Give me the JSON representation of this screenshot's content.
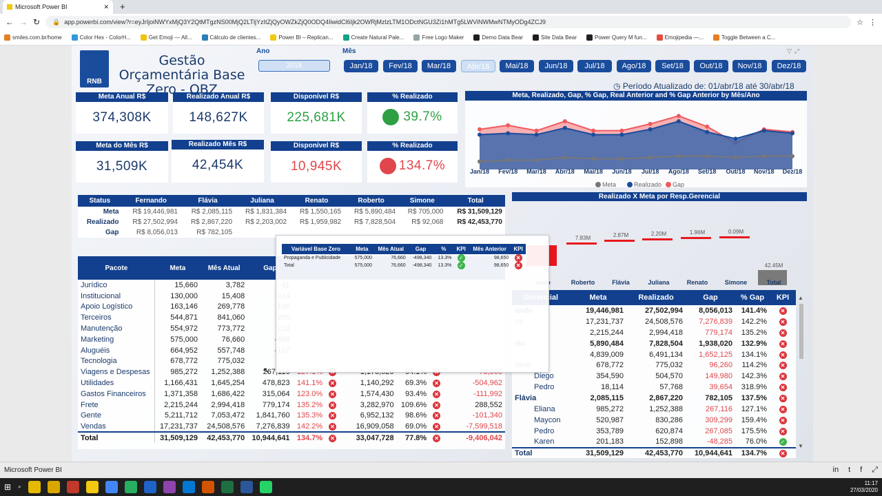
{
  "browser": {
    "tab_title": "Microsoft Power BI",
    "url": "app.powerbi.com/view?r=eyJrIjoiNWYxMjQ3Y2QtMTgzNS00MjQ2LTljYzItZjQyOWZkZjQ0ODQ4IiwidCl6Ijk2OWRjMzlzLTM1ODctNGU3Zi1hMTg5LWViNWMwNTMyODg4ZCJ9",
    "bookmarks": [
      "smiles.com.br/home",
      "Color Hex - ColorH...",
      "Get Emoji — All...",
      "Cálculo de clientes...",
      "Power BI – Replican...",
      "Create Natural Pale...",
      "Free Logo Maker",
      "Demo Data Bear",
      "Site Data Bear",
      "Power Query M fun...",
      "Emojipedia —...",
      "Toggle Between a C..."
    ]
  },
  "report": {
    "logo_text": "RNB",
    "title": "Gestão Orçamentária Base Zero - OBZ",
    "ano_label": "Ano",
    "mes_label": "Mês",
    "ano_value": "2018",
    "months": [
      "Jan/18",
      "Fev/18",
      "Mar/18",
      "Abr/18",
      "Mai/18",
      "Jun/18",
      "Jul/18",
      "Ago/18",
      "Set/18",
      "Out/18",
      "Nov/18",
      "Dez/18"
    ],
    "selected_month": "Abr/18",
    "periodo": "Período Atualizado de: 01/abr/18 até 30/abr/18"
  },
  "cards": {
    "meta_anual": {
      "label": "Meta Anual R$",
      "value": "374,308K"
    },
    "realizado_anual": {
      "label": "Realizado Anual R$",
      "value": "148,627K"
    },
    "disponivel_anual": {
      "label": "Disponível R$",
      "value": "225,681K",
      "color": "#2ea043"
    },
    "pct_anual": {
      "label": "% Realizado",
      "value": "39.7%",
      "color": "#2ea043"
    },
    "meta_mes": {
      "label": "Meta do Mês R$",
      "value": "31,509K"
    },
    "realizado_mes": {
      "label": "Realizado Mês R$",
      "value": "42,454K"
    },
    "disponivel_mes": {
      "label": "Disponível R$",
      "value": "10,945K",
      "color": "#e0464b"
    },
    "pct_mes": {
      "label": "% Realizado",
      "value": "134.7%",
      "color": "#e0464b"
    }
  },
  "chart_data": {
    "type": "area",
    "title": "Meta, Realizado, Gap, % Gap, Real Anterior and % Gap Anterior by Mês/Ano",
    "categories": [
      "Jan/18",
      "Fev/18",
      "Mar/18",
      "Abr/18",
      "Mai/18",
      "Jun/18",
      "Jul/18",
      "Ago/18",
      "Set/18",
      "Out/18",
      "Nov/18",
      "Dez/18"
    ],
    "series": [
      {
        "name": "Meta",
        "color": "#777777",
        "values": [
          30.0,
          30.5,
          30.5,
          31.5,
          31.0,
          31.0,
          31.5,
          32.0,
          32.0,
          31.5,
          32.0,
          32.0
        ]
      },
      {
        "name": "Realizado",
        "color": "#1a4c9c",
        "values": [
          40.0,
          40.5,
          40.0,
          42.5,
          40.0,
          40.0,
          42.0,
          45.0,
          41.0,
          38.5,
          41.5,
          40.5
        ]
      },
      {
        "name": "Gap",
        "color": "#f05a5f",
        "values": [
          42.0,
          43.5,
          41.5,
          45.0,
          41.5,
          41.5,
          44.0,
          47.0,
          43.0,
          37.0,
          42.0,
          41.0
        ]
      }
    ],
    "legend": [
      "Meta",
      "Realizado",
      "Gap"
    ]
  },
  "status_table": {
    "headers": [
      "Status",
      "Fernando",
      "Flávia",
      "Juliana",
      "Renato",
      "Roberto",
      "Simone",
      "Total"
    ],
    "rows": [
      [
        "Meta",
        "R$ 19,446,981",
        "R$ 2,085,115",
        "R$ 1,831,384",
        "R$ 1,550,165",
        "R$ 5,890,484",
        "R$ 705,000",
        "R$ 31,509,129"
      ],
      [
        "Realizado",
        "R$ 27,502,994",
        "R$ 2,867,220",
        "R$ 2,203,002",
        "R$ 1,959,982",
        "R$ 7,828,504",
        "R$ 92,068",
        "R$ 42,453,770"
      ],
      [
        "Gap",
        "R$ 8,056,013",
        "R$ 782,105",
        "",
        "",
        "",
        "",
        ""
      ]
    ]
  },
  "waterfall": {
    "title": "Realizado X Meta por Resp.Gerencial",
    "categories": [
      "ando",
      "Roberto",
      "Flávia",
      "Juliana",
      "Renato",
      "Simone",
      "Total"
    ],
    "labels": [
      "",
      "7.83M",
      "2.87M",
      "2.20M",
      "1.96M",
      "0.09M",
      "42.45M"
    ]
  },
  "pacote_table": {
    "headers": [
      "Pacote",
      "Meta",
      "Mês Atual",
      "Gap",
      "",
      "",
      "",
      "",
      "",
      ""
    ],
    "rows": [
      [
        "Jurídico",
        "15,660",
        "3,782",
        "-11"
      ],
      [
        "Institucional",
        "130,000",
        "15,408",
        "-114"
      ],
      [
        "Apoio Logístico",
        "163,146",
        "269,778",
        "106"
      ],
      [
        "Terceiros",
        "544,871",
        "841,060",
        "296"
      ],
      [
        "Manutenção",
        "554,972",
        "773,772",
        "218"
      ],
      [
        "Marketing",
        "575,000",
        "76,660",
        "-498"
      ],
      [
        "Aluguéis",
        "664,952",
        "557,748",
        "-107"
      ],
      [
        "Tecnologia",
        "678,772",
        "775,032",
        ""
      ],
      [
        "Viagens e Despesas",
        "985,272",
        "1,252,388",
        "267,116",
        "127.1%",
        "x",
        "1,178,520",
        "94.1%",
        "x",
        "-73,868"
      ],
      [
        "Utilidades",
        "1,166,431",
        "1,645,254",
        "478,823",
        "141.1%",
        "x",
        "1,140,292",
        "69.3%",
        "x",
        "-504,962"
      ],
      [
        "Gastos Financeiros",
        "1,371,358",
        "1,686,422",
        "315,064",
        "123.0%",
        "x",
        "1,574,430",
        "93.4%",
        "x",
        "-111,992"
      ],
      [
        "Frete",
        "2,215,244",
        "2,994,418",
        "779,174",
        "135.2%",
        "x",
        "3,282,970",
        "109.6%",
        "x",
        "288,552"
      ],
      [
        "Gente",
        "5,211,712",
        "7,053,472",
        "1,841,760",
        "135.3%",
        "x",
        "6,952,132",
        "98.6%",
        "x",
        "-101,340"
      ],
      [
        "Vendas",
        "17,231,737",
        "24,508,576",
        "7,276,839",
        "142.2%",
        "x",
        "16,909,058",
        "69.0%",
        "x",
        "-7,599,518"
      ]
    ],
    "total": [
      "Total",
      "31,509,129",
      "42,453,770",
      "10,944,641",
      "134.7%",
      "x",
      "33,047,728",
      "77.8%",
      "x",
      "-9,406,042"
    ]
  },
  "resp_table": {
    "headers": [
      "Gerencial",
      "Meta",
      "Realizado",
      "Gap",
      "% Gap",
      "KPI"
    ],
    "rows": [
      {
        "name": "ando",
        "meta": "19,446,981",
        "real": "27,502,994",
        "gap": "8,056,013",
        "pct": "141.4%",
        "kpi": "x",
        "bold": true,
        "indent": false
      },
      {
        "name": "na",
        "meta": "17,231,737",
        "real": "24,508,576",
        "gap": "7,276,839",
        "pct": "142.2%",
        "kpi": "x",
        "bold": false,
        "indent": false
      },
      {
        "name": "",
        "meta": "2,215,244",
        "real": "2,994,418",
        "gap": "779,174",
        "pct": "135.2%",
        "kpi": "x",
        "bold": false,
        "indent": false
      },
      {
        "name": "rto",
        "meta": "5,890,484",
        "real": "7,828,504",
        "gap": "1,938,020",
        "pct": "132.9%",
        "kpi": "x",
        "bold": true,
        "indent": false
      },
      {
        "name": "",
        "meta": "4,839,009",
        "real": "6,491,134",
        "gap": "1,652,125",
        "pct": "134.1%",
        "kpi": "x",
        "bold": false,
        "indent": false
      },
      {
        "name": "oline",
        "meta": "678,772",
        "real": "775,032",
        "gap": "96,260",
        "pct": "114.2%",
        "kpi": "x",
        "bold": false,
        "indent": false
      },
      {
        "name": "Diego",
        "meta": "354,590",
        "real": "504,570",
        "gap": "149,980",
        "pct": "142.3%",
        "kpi": "x",
        "bold": false,
        "indent": true
      },
      {
        "name": "Pedro",
        "meta": "18,114",
        "real": "57,768",
        "gap": "39,654",
        "pct": "318.9%",
        "kpi": "x",
        "bold": false,
        "indent": true
      },
      {
        "name": "Flávia",
        "meta": "2,085,115",
        "real": "2,867,220",
        "gap": "782,105",
        "pct": "137.5%",
        "kpi": "x",
        "bold": true,
        "indent": false
      },
      {
        "name": "Eliana",
        "meta": "985,272",
        "real": "1,252,388",
        "gap": "267,116",
        "pct": "127.1%",
        "kpi": "x",
        "bold": false,
        "indent": true
      },
      {
        "name": "Maycon",
        "meta": "520,987",
        "real": "830,286",
        "gap": "309,299",
        "pct": "159.4%",
        "kpi": "x",
        "bold": false,
        "indent": true
      },
      {
        "name": "Pedro",
        "meta": "353,789",
        "real": "620,874",
        "gap": "267,085",
        "pct": "175.5%",
        "kpi": "x",
        "bold": false,
        "indent": true
      },
      {
        "name": "Karen",
        "meta": "201,183",
        "real": "152,898",
        "gap": "-48,285",
        "pct": "76.0%",
        "kpi": "ok",
        "bold": false,
        "indent": true
      }
    ],
    "total": {
      "name": "Total",
      "meta": "31,509,129",
      "real": "42,453,770",
      "gap": "10,944,641",
      "pct": "134.7%",
      "kpi": "x"
    }
  },
  "tooltip": {
    "headers": [
      "Variável Base Zero",
      "Meta",
      "Mês Atual",
      "Gap",
      "%",
      "KPI",
      "Mês Anterior",
      "KPI"
    ],
    "row": [
      "Propaganda e Publicidade",
      "575,000",
      "76,660",
      "-498,340",
      "13.3%",
      "ok",
      "98,650",
      "x"
    ],
    "total": [
      "Total",
      "575,000",
      "76,660",
      "-498,340",
      "13.3%",
      "ok",
      "98,650",
      "x"
    ]
  },
  "footer": {
    "app_name": "Microsoft Power BI",
    "time": "11:17",
    "date": "27/03/2020"
  }
}
